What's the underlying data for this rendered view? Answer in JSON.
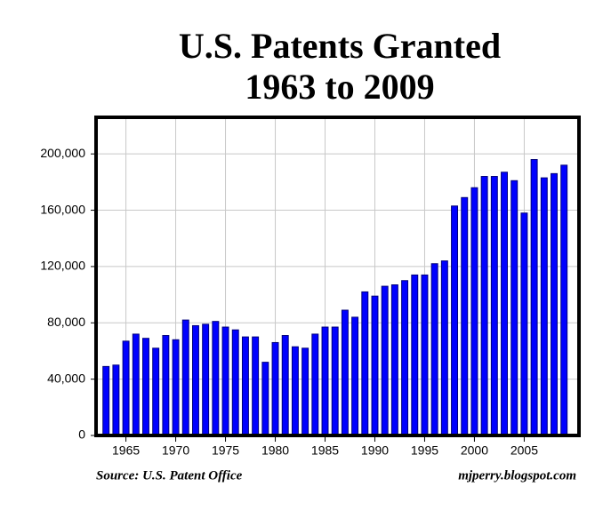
{
  "chart_data": {
    "type": "bar",
    "title": [
      "U.S. Patents Granted",
      "1963 to 2009"
    ],
    "source": "Source: U.S. Patent Office",
    "credit": "mjperry.blogspot.com",
    "x": [
      1963,
      1964,
      1965,
      1966,
      1967,
      1968,
      1969,
      1970,
      1971,
      1972,
      1973,
      1974,
      1975,
      1976,
      1977,
      1978,
      1979,
      1980,
      1981,
      1982,
      1983,
      1984,
      1985,
      1986,
      1987,
      1988,
      1989,
      1990,
      1991,
      1992,
      1993,
      1994,
      1995,
      1996,
      1997,
      1998,
      1999,
      2000,
      2001,
      2002,
      2003,
      2004,
      2005,
      2006,
      2007,
      2008,
      2009
    ],
    "values": [
      49000,
      50000,
      67000,
      72000,
      69000,
      62000,
      71000,
      68000,
      82000,
      78000,
      79000,
      81000,
      77000,
      75000,
      70000,
      70000,
      52000,
      66000,
      71000,
      63000,
      62000,
      72000,
      77000,
      77000,
      89000,
      84000,
      102000,
      99000,
      106000,
      107000,
      110000,
      114000,
      114000,
      122000,
      124000,
      163000,
      169000,
      176000,
      184000,
      184000,
      187000,
      181000,
      158000,
      196000,
      183000,
      186000,
      192000
    ],
    "color": "#0000ff",
    "xlim": [
      1962,
      2010.5
    ],
    "xticks": [
      1965,
      1970,
      1975,
      1980,
      1985,
      1990,
      1995,
      2000,
      2005
    ],
    "ylim": [
      0,
      226000
    ],
    "yticks": [
      0,
      {
        "value": 40000,
        "label": "40,000"
      },
      {
        "value": 80000,
        "label": "80,000"
      },
      {
        "value": 120000,
        "label": "120,000"
      },
      {
        "value": 160000,
        "label": "160,000"
      },
      {
        "value": 200000,
        "label": "200,000"
      }
    ],
    "grid": true
  }
}
